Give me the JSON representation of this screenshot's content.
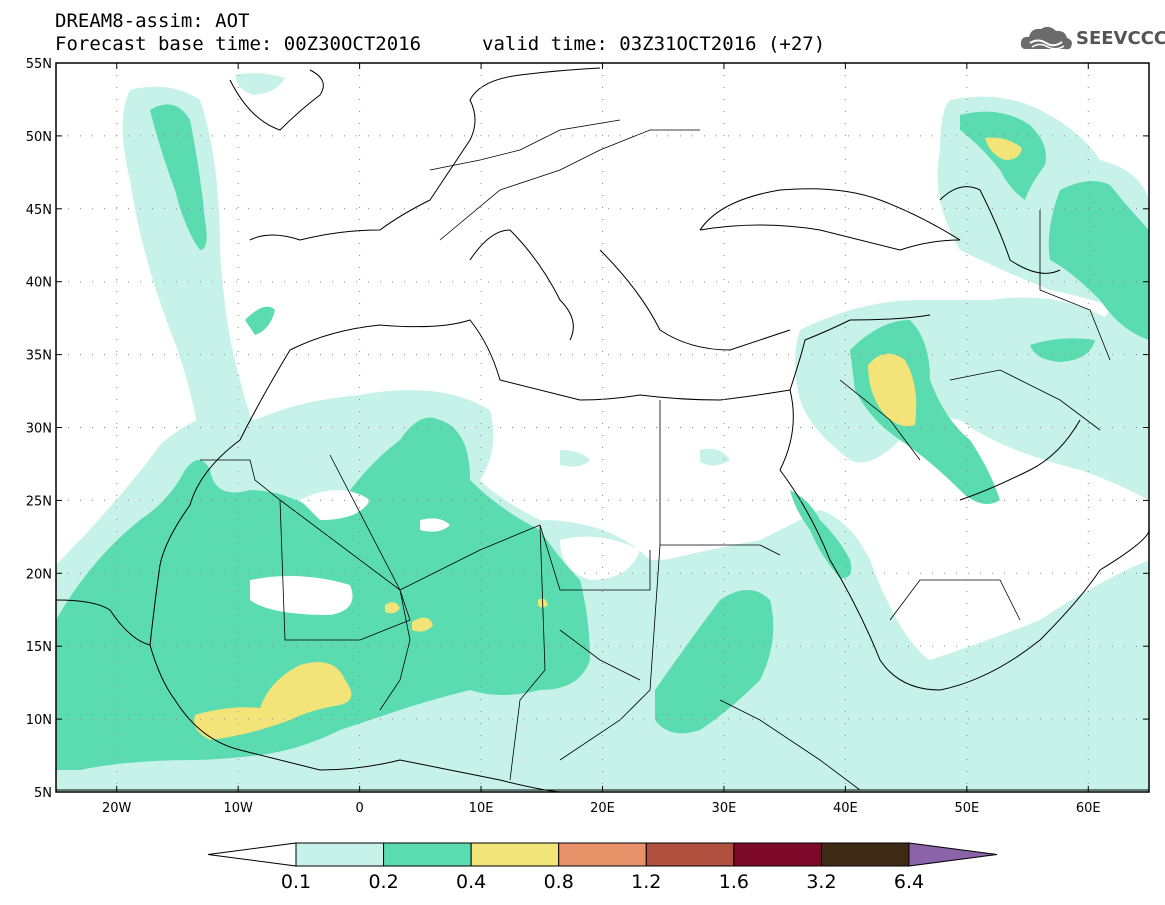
{
  "header": {
    "title_line1": "DREAM8-assim: AOT",
    "title_line2": "Forecast base time: 00Z30OCT2016",
    "valid_time": "valid time: 03Z31OCT2016 (+27)"
  },
  "logo": {
    "text": "SEEVCCC",
    "icon": "cloud-icon"
  },
  "map": {
    "lon_range": [
      -25,
      65
    ],
    "lat_range": [
      5,
      55
    ],
    "lat_ticks": [
      {
        "value": 55,
        "label": "55N"
      },
      {
        "value": 50,
        "label": "50N"
      },
      {
        "value": 45,
        "label": "45N"
      },
      {
        "value": 40,
        "label": "40N"
      },
      {
        "value": 35,
        "label": "35N"
      },
      {
        "value": 30,
        "label": "30N"
      },
      {
        "value": 25,
        "label": "25N"
      },
      {
        "value": 20,
        "label": "20N"
      },
      {
        "value": 15,
        "label": "15N"
      },
      {
        "value": 10,
        "label": "10N"
      },
      {
        "value": 5,
        "label": "5N"
      }
    ],
    "lon_ticks": [
      {
        "value": -20,
        "label": "20W"
      },
      {
        "value": -10,
        "label": "10W"
      },
      {
        "value": 0,
        "label": "0"
      },
      {
        "value": 10,
        "label": "10E"
      },
      {
        "value": 20,
        "label": "20E"
      },
      {
        "value": 30,
        "label": "30E"
      },
      {
        "value": 40,
        "label": "40E"
      },
      {
        "value": 50,
        "label": "50E"
      },
      {
        "value": 60,
        "label": "60E"
      }
    ],
    "grid": "dotted"
  },
  "colorbar": {
    "colors": [
      "#ffffff",
      "#c6f2ea",
      "#5adbb0",
      "#f3e47a",
      "#e8926a",
      "#b0513f",
      "#7d0a2a",
      "#3e2a14",
      "#8a63a8"
    ],
    "labels": [
      "0.1",
      "0.2",
      "0.4",
      "0.8",
      "1.2",
      "1.6",
      "3.2",
      "6.4"
    ]
  },
  "colors": {
    "level_0_1": "#c6f2ea",
    "level_0_2": "#5adbb0",
    "level_0_4": "#f3e47a"
  }
}
